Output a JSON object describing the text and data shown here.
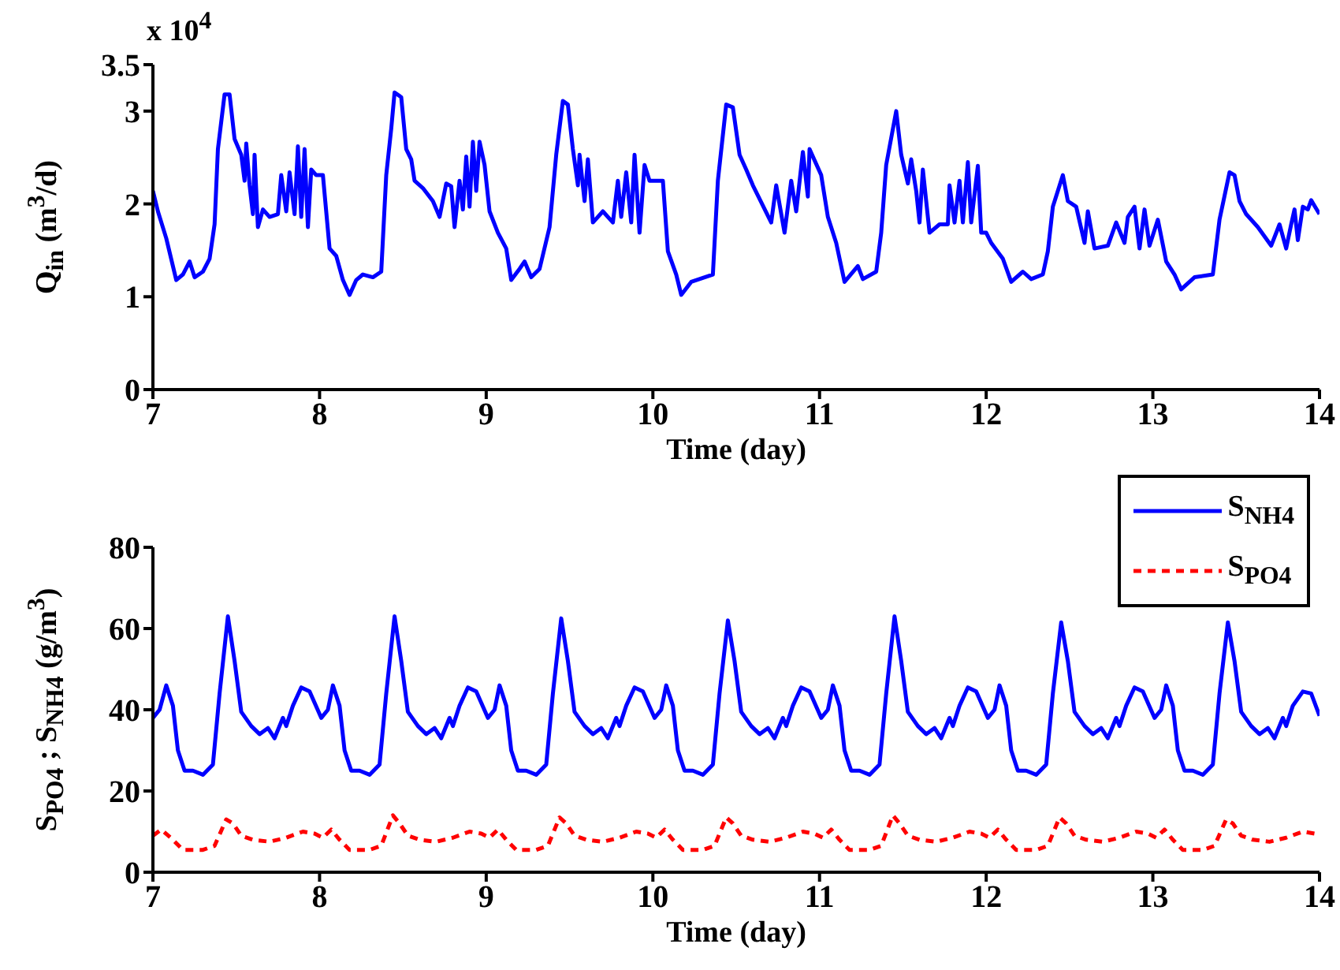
{
  "chart_data": [
    {
      "type": "line",
      "xlabel": "Time (day)",
      "ylabel": "Q$_{in}$ (m$^{3}$/d)",
      "annotations": [
        "x 10$^{4}$"
      ],
      "xlim": [
        7,
        14
      ],
      "xticks": [
        7,
        8,
        9,
        10,
        11,
        12,
        13,
        14
      ],
      "ylim": [
        0,
        3.5
      ],
      "yticks": [
        0,
        1,
        2,
        3,
        3.5
      ],
      "legend": false,
      "grid": false,
      "line_style": "solid",
      "series": [
        {
          "color": "#0000ff",
          "x": [
            7.0,
            7.03,
            7.08,
            7.14,
            7.18,
            7.22,
            7.25,
            7.3,
            7.34,
            7.37,
            7.39,
            7.43,
            7.46,
            7.49,
            7.53,
            7.55,
            7.56,
            7.58,
            7.6,
            7.61,
            7.63,
            7.66,
            7.7,
            7.75,
            7.77,
            7.8,
            7.82,
            7.85,
            7.87,
            7.89,
            7.91,
            7.93,
            7.95,
            7.98,
            8.02,
            8.06,
            8.1,
            8.14,
            8.18,
            8.22,
            8.26,
            8.32,
            8.37,
            8.4,
            8.43,
            8.45,
            8.49,
            8.52,
            8.55,
            8.57,
            8.62,
            8.68,
            8.72,
            8.76,
            8.79,
            8.81,
            8.84,
            8.86,
            8.88,
            8.9,
            8.92,
            8.94,
            8.96,
            8.99,
            9.02,
            9.07,
            9.12,
            9.15,
            9.2,
            9.23,
            9.27,
            9.32,
            9.38,
            9.42,
            9.46,
            9.49,
            9.52,
            9.55,
            9.56,
            9.59,
            9.61,
            9.64,
            9.7,
            9.76,
            9.79,
            9.81,
            9.84,
            9.87,
            9.89,
            9.92,
            9.95,
            9.98,
            10.06,
            10.09,
            10.14,
            10.17,
            10.23,
            10.36,
            10.39,
            10.44,
            10.48,
            10.52,
            10.56,
            10.6,
            10.71,
            10.74,
            10.79,
            10.83,
            10.86,
            10.9,
            10.93,
            10.94,
            11.01,
            11.05,
            11.1,
            11.15,
            11.23,
            11.26,
            11.34,
            11.37,
            11.4,
            11.46,
            11.49,
            11.53,
            11.55,
            11.58,
            11.6,
            11.62,
            11.66,
            11.72,
            11.77,
            11.78,
            11.81,
            11.84,
            11.86,
            11.89,
            11.91,
            11.95,
            11.97,
            12.0,
            12.03,
            12.1,
            12.15,
            12.22,
            12.27,
            12.34,
            12.37,
            12.4,
            12.46,
            12.49,
            12.54,
            12.59,
            12.61,
            12.65,
            12.73,
            12.78,
            12.83,
            12.85,
            12.89,
            12.92,
            12.95,
            12.98,
            13.03,
            13.08,
            13.13,
            13.17,
            13.25,
            13.36,
            13.4,
            13.46,
            13.49,
            13.52,
            13.56,
            13.63,
            13.71,
            13.76,
            13.8,
            13.83,
            13.85,
            13.87,
            13.9,
            13.93,
            13.95,
            14.0
          ],
          "values": [
            2.14,
            1.92,
            1.63,
            1.18,
            1.24,
            1.38,
            1.21,
            1.27,
            1.41,
            1.78,
            2.59,
            3.18,
            3.18,
            2.7,
            2.53,
            2.25,
            2.65,
            2.2,
            1.89,
            2.53,
            1.75,
            1.94,
            1.86,
            1.89,
            2.31,
            1.92,
            2.34,
            1.89,
            2.62,
            1.86,
            2.59,
            1.75,
            2.37,
            2.31,
            2.31,
            1.52,
            1.44,
            1.18,
            1.02,
            1.18,
            1.24,
            1.21,
            1.27,
            2.31,
            2.81,
            3.2,
            3.15,
            2.59,
            2.48,
            2.25,
            2.17,
            2.03,
            1.86,
            2.22,
            2.19,
            1.75,
            2.25,
            1.94,
            2.51,
            1.97,
            2.67,
            2.14,
            2.67,
            2.42,
            1.92,
            1.69,
            1.52,
            1.18,
            1.3,
            1.38,
            1.21,
            1.3,
            1.75,
            2.53,
            3.11,
            3.07,
            2.59,
            2.2,
            2.53,
            2.03,
            2.48,
            1.8,
            1.92,
            1.8,
            2.25,
            1.86,
            2.34,
            1.8,
            2.53,
            1.69,
            2.42,
            2.25,
            2.25,
            1.49,
            1.24,
            1.02,
            1.16,
            1.24,
            2.25,
            3.07,
            3.04,
            2.53,
            2.37,
            2.2,
            1.8,
            2.2,
            1.69,
            2.25,
            1.92,
            2.56,
            2.08,
            2.59,
            2.31,
            1.86,
            1.58,
            1.16,
            1.33,
            1.19,
            1.27,
            1.69,
            2.42,
            3.0,
            2.53,
            2.22,
            2.48,
            2.14,
            1.8,
            2.37,
            1.69,
            1.78,
            1.78,
            2.2,
            1.8,
            2.25,
            1.8,
            2.45,
            1.8,
            2.41,
            1.69,
            1.69,
            1.58,
            1.41,
            1.16,
            1.27,
            1.19,
            1.24,
            1.49,
            1.97,
            2.31,
            2.03,
            1.97,
            1.58,
            1.92,
            1.52,
            1.55,
            1.8,
            1.58,
            1.86,
            1.97,
            1.52,
            1.94,
            1.55,
            1.83,
            1.38,
            1.24,
            1.08,
            1.21,
            1.24,
            1.83,
            2.34,
            2.31,
            2.03,
            1.89,
            1.75,
            1.55,
            1.78,
            1.52,
            1.78,
            1.94,
            1.61,
            1.97,
            1.94,
            2.04,
            1.89
          ]
        }
      ]
    },
    {
      "type": "line",
      "xlabel": "Time (day)",
      "ylabel": "S$_{PO4}$ ; S$_{NH4}$ (g/m$^{3}$)",
      "xlim": [
        7,
        14
      ],
      "xticks": [
        7,
        8,
        9,
        10,
        11,
        12,
        13,
        14
      ],
      "ylim": [
        0,
        80
      ],
      "yticks": [
        0,
        20,
        40,
        60,
        80
      ],
      "legend": "top right",
      "grid": false,
      "series": [
        {
          "name": "S$_{NH4}$",
          "color": "#0000ff",
          "line_style": "solid",
          "x": [
            7.0,
            7.04,
            7.08,
            7.12,
            7.15,
            7.19,
            7.24,
            7.3,
            7.36,
            7.4,
            7.45,
            7.49,
            7.53,
            7.59,
            7.64,
            7.69,
            7.73,
            7.78,
            7.8,
            7.84,
            7.89,
            7.94,
            8.01,
            8.05,
            8.08,
            8.12,
            8.15,
            8.19,
            8.24,
            8.3,
            8.36,
            8.4,
            8.45,
            8.49,
            8.53,
            8.59,
            8.64,
            8.69,
            8.73,
            8.78,
            8.8,
            8.84,
            8.89,
            8.94,
            9.01,
            9.05,
            9.08,
            9.12,
            9.15,
            9.19,
            9.24,
            9.3,
            9.36,
            9.4,
            9.45,
            9.49,
            9.53,
            9.59,
            9.64,
            9.69,
            9.73,
            9.78,
            9.8,
            9.84,
            9.89,
            9.94,
            10.01,
            10.05,
            10.08,
            10.12,
            10.15,
            10.19,
            10.24,
            10.3,
            10.36,
            10.4,
            10.45,
            10.49,
            10.53,
            10.59,
            10.64,
            10.69,
            10.73,
            10.78,
            10.8,
            10.84,
            10.89,
            10.94,
            11.01,
            11.05,
            11.08,
            11.12,
            11.15,
            11.19,
            11.24,
            11.3,
            11.36,
            11.4,
            11.45,
            11.49,
            11.53,
            11.59,
            11.64,
            11.69,
            11.73,
            11.78,
            11.8,
            11.84,
            11.89,
            11.94,
            12.01,
            12.05,
            12.08,
            12.12,
            12.15,
            12.19,
            12.24,
            12.3,
            12.36,
            12.4,
            12.45,
            12.49,
            12.53,
            12.59,
            12.64,
            12.69,
            12.73,
            12.78,
            12.8,
            12.84,
            12.89,
            12.94,
            13.01,
            13.05,
            13.08,
            13.12,
            13.15,
            13.19,
            13.24,
            13.3,
            13.36,
            13.4,
            13.45,
            13.49,
            13.53,
            13.59,
            13.64,
            13.69,
            13.73,
            13.78,
            13.8,
            13.84,
            13.9,
            13.95,
            14.0
          ],
          "values": [
            38,
            40,
            46,
            41,
            30,
            25,
            25,
            24,
            26.5,
            44,
            63,
            52,
            39.5,
            36,
            34,
            35.5,
            33,
            38,
            36,
            41,
            45.5,
            44.5,
            38,
            40,
            46,
            41,
            30,
            25,
            25,
            24,
            26.5,
            44,
            63,
            52,
            39.5,
            36,
            34,
            35.5,
            33,
            38,
            36,
            41,
            45.5,
            44.5,
            38,
            40,
            46,
            41,
            30,
            25,
            25,
            24,
            26.5,
            44,
            62.5,
            52,
            39.5,
            36,
            34,
            35.5,
            33,
            38,
            36,
            41,
            45.5,
            44.5,
            38,
            40,
            46,
            41,
            30,
            25,
            25,
            24,
            26.5,
            44,
            62,
            52,
            39.5,
            36,
            34,
            35.5,
            33,
            38,
            36,
            41,
            45.5,
            44.5,
            38,
            40,
            46,
            41,
            30,
            25,
            25,
            24,
            26.5,
            44,
            63,
            52,
            39.5,
            36,
            34,
            35.5,
            33,
            38,
            36,
            41,
            45.5,
            44.5,
            38,
            40,
            46,
            41,
            30,
            25,
            25,
            24,
            26.5,
            44,
            61.5,
            52,
            39.5,
            36,
            34,
            35.5,
            33,
            38,
            36,
            41,
            45.5,
            44.5,
            38,
            40,
            46,
            41,
            30,
            25,
            25,
            24,
            26.5,
            44,
            61.5,
            52,
            39.5,
            36,
            34,
            35.5,
            33,
            38,
            36,
            41,
            44.5,
            44,
            38.5
          ]
        },
        {
          "name": "S$_{PO4}$",
          "color": "#ff0000",
          "line_style": "dashed",
          "x": [
            7.0,
            7.05,
            7.12,
            7.18,
            7.3,
            7.37,
            7.44,
            7.48,
            7.53,
            7.6,
            7.7,
            7.8,
            7.9,
            7.97,
            8.02,
            8.07,
            8.12,
            8.18,
            8.3,
            8.37,
            8.44,
            8.48,
            8.53,
            8.6,
            8.7,
            8.8,
            8.9,
            8.97,
            9.02,
            9.07,
            9.12,
            9.18,
            9.3,
            9.37,
            9.44,
            9.48,
            9.53,
            9.6,
            9.7,
            9.8,
            9.9,
            9.97,
            10.02,
            10.07,
            10.12,
            10.18,
            10.3,
            10.37,
            10.44,
            10.48,
            10.53,
            10.6,
            10.7,
            10.8,
            10.9,
            10.97,
            11.02,
            11.07,
            11.12,
            11.18,
            11.3,
            11.37,
            11.44,
            11.48,
            11.53,
            11.6,
            11.7,
            11.8,
            11.9,
            11.97,
            12.02,
            12.07,
            12.12,
            12.18,
            12.3,
            12.37,
            12.44,
            12.48,
            12.53,
            12.6,
            12.7,
            12.8,
            12.9,
            12.97,
            13.02,
            13.07,
            13.12,
            13.18,
            13.3,
            13.37,
            13.44,
            13.48,
            13.53,
            13.6,
            13.7,
            13.8,
            13.9,
            13.97,
            14.0
          ],
          "values": [
            9,
            10.5,
            8,
            5.5,
            5.5,
            6.5,
            13,
            12,
            9,
            8,
            7.5,
            8.5,
            10,
            9.5,
            8.5,
            10.5,
            8,
            5.5,
            5.5,
            6.5,
            14,
            12,
            9,
            8,
            7.5,
            8.5,
            10,
            9.5,
            8.5,
            10.5,
            8,
            5.5,
            5.5,
            6.5,
            13.5,
            12,
            9,
            8,
            7.5,
            8.5,
            10,
            9.5,
            8.5,
            10.5,
            8,
            5.5,
            5.5,
            6.5,
            13.5,
            12,
            9,
            8,
            7.5,
            8.5,
            10,
            9.5,
            8.5,
            10.5,
            8,
            5.5,
            5.5,
            6.5,
            14,
            12,
            9,
            8,
            7.5,
            8.5,
            10,
            9.5,
            8.5,
            10.5,
            8,
            5.5,
            5.5,
            6.5,
            13.5,
            12,
            9,
            8,
            7.5,
            8.5,
            10,
            9.5,
            8.5,
            10.5,
            8,
            5.5,
            5.5,
            6.5,
            13,
            12,
            9,
            8,
            7.5,
            8.5,
            10,
            9.5,
            9
          ]
        }
      ]
    }
  ]
}
